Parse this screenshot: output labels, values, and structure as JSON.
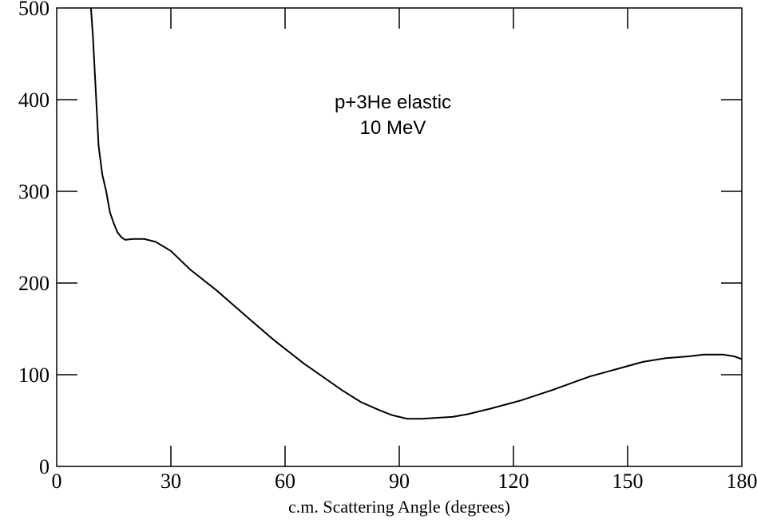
{
  "chart_data": {
    "type": "line",
    "xlabel": "c.m. Scattering Angle (degrees)",
    "ylabel": "",
    "xlim": [
      0,
      180
    ],
    "ylim": [
      0,
      500
    ],
    "xticks": [
      0,
      30,
      60,
      90,
      120,
      150,
      180
    ],
    "yticks": [
      0,
      100,
      200,
      300,
      400,
      500
    ],
    "xtick_labels": [
      "0",
      "30",
      "60",
      "90",
      "120",
      "150",
      "180"
    ],
    "ytick_labels": [
      "0",
      "100",
      "200",
      "300",
      "400",
      "500"
    ],
    "grid": false,
    "annotations": [
      "p+3He elastic",
      "10 MeV"
    ],
    "series": [
      {
        "x": [
          9,
          9.5,
          10,
          10.5,
          11,
          12,
          13,
          14,
          15,
          16,
          17,
          18,
          20,
          23,
          26,
          30,
          35,
          42,
          50,
          57,
          65,
          75,
          80,
          85,
          88,
          92,
          96,
          100,
          104,
          108,
          114,
          122,
          130,
          140,
          147,
          154,
          160,
          166,
          170,
          175,
          178,
          180
        ],
        "y": [
          500,
          470,
          430,
          390,
          350,
          318,
          300,
          277,
          265,
          255,
          250,
          247,
          248,
          248,
          245,
          235,
          215,
          192,
          163,
          138,
          112,
          83,
          70,
          61,
          56,
          52,
          52,
          53,
          54,
          57,
          63,
          72,
          83,
          98,
          106,
          114,
          118,
          120,
          122,
          122,
          120,
          117
        ]
      }
    ]
  }
}
